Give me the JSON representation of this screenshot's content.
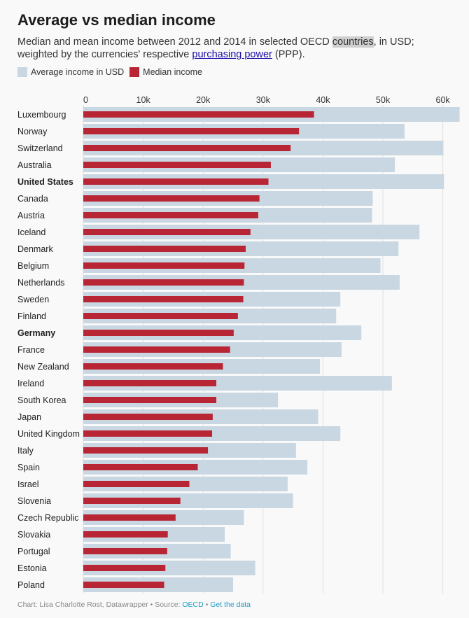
{
  "header": {
    "title": "Average vs median income",
    "subtitle_part1": "Median and mean income between 2012 and 2014 in selected OECD ",
    "subtitle_highlight": "countries",
    "subtitle_part2": ", in USD; weighted by the currencies' respective ",
    "subtitle_link": "purchasing power",
    "subtitle_part3": " (PPP)."
  },
  "footer": {
    "credit": "Chart: Lisa Charlotte Rost, Datawrapper • Source: ",
    "source_link": "OECD",
    "separator": " • ",
    "data_link": "Get the data"
  },
  "colors": {
    "average": "#c8d7e1",
    "median": "#b82535",
    "grid": "#e0e0e0"
  },
  "chart_data": {
    "type": "bar",
    "orientation": "horizontal",
    "title": "Average vs median income",
    "xlim": [
      0,
      62500
    ],
    "ticks": [
      {
        "value": 0,
        "label": "0"
      },
      {
        "value": 10000,
        "label": "10k"
      },
      {
        "value": 20000,
        "label": "20k"
      },
      {
        "value": 30000,
        "label": "30k"
      },
      {
        "value": 40000,
        "label": "40k"
      },
      {
        "value": 50000,
        "label": "50k"
      },
      {
        "value": 60000,
        "label": "60k"
      }
    ],
    "grid": true,
    "legend": "top-left",
    "categories": [
      "Luxembourg",
      "Norway",
      "Switzerland",
      "Australia",
      "United States",
      "Canada",
      "Austria",
      "Iceland",
      "Denmark",
      "Belgium",
      "Netherlands",
      "Sweden",
      "Finland",
      "Germany",
      "France",
      "New Zealand",
      "Ireland",
      "South Korea",
      "Japan",
      "United Kingdom",
      "Italy",
      "Spain",
      "Israel",
      "Slovenia",
      "Czech Republic",
      "Slovakia",
      "Portugal",
      "Estonia",
      "Poland"
    ],
    "bold_categories": [
      "United States",
      "Germany"
    ],
    "series": [
      {
        "name": "Average income in USD",
        "values": [
          62800,
          53600,
          60100,
          52000,
          60200,
          48300,
          48200,
          56100,
          52600,
          49600,
          52800,
          42900,
          42200,
          46400,
          43100,
          39500,
          51500,
          32500,
          39200,
          42900,
          35500,
          37400,
          34100,
          35000,
          26800,
          23600,
          24600,
          28700,
          25000
        ]
      },
      {
        "name": "Median income",
        "values": [
          38500,
          36000,
          34600,
          31300,
          30900,
          29400,
          29200,
          27900,
          27100,
          26900,
          26800,
          26700,
          25800,
          25100,
          24500,
          23300,
          22200,
          22200,
          21600,
          21500,
          20800,
          19100,
          17700,
          16200,
          15400,
          14100,
          14000,
          13700,
          13500
        ]
      }
    ]
  }
}
